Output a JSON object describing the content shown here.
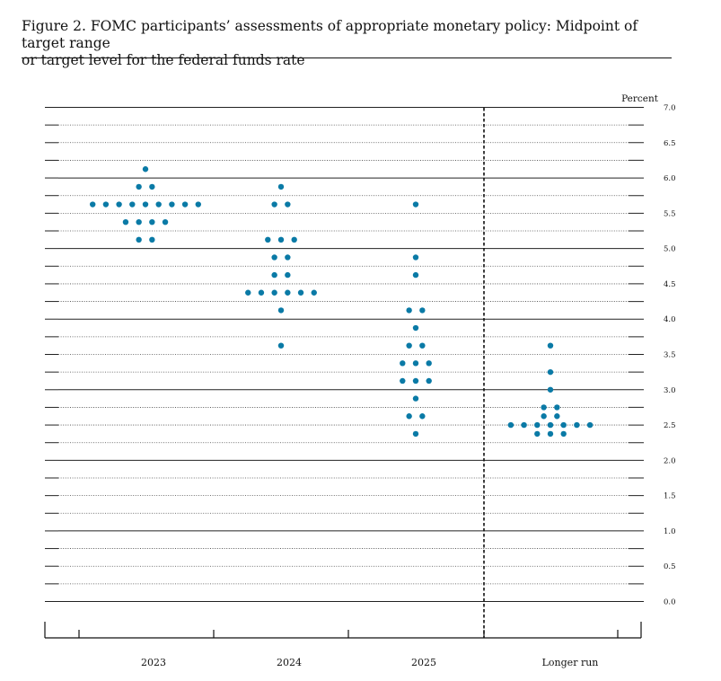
{
  "caption": {
    "line1": "Figure 2.  FOMC participants’ assessments of appropriate monetary policy: Midpoint of target range",
    "line2": "or target level for the federal funds rate"
  },
  "chart_data": {
    "type": "scatter",
    "title": "Figure 2. FOMC participants’ assessments of appropriate monetary policy: Midpoint of target range or target level for the federal funds rate",
    "ylabel": "Percent",
    "xlabel": "",
    "ylim": [
      0,
      7
    ],
    "yticks": [
      "0.0",
      "0.5",
      "1.0",
      "1.5",
      "2.0",
      "2.5",
      "3.0",
      "3.5",
      "4.0",
      "4.5",
      "5.0",
      "5.5",
      "6.0",
      "6.5",
      "7.0"
    ],
    "grid": "dotted at 0.25, solid at whole numbers",
    "legend": "none",
    "marker_color": "#0a7aa6",
    "categories": [
      "2023",
      "2024",
      "2025",
      "Longer run"
    ],
    "dots": [
      {
        "category": "2023",
        "points": [
          {
            "rate": 6.125,
            "count": 1
          },
          {
            "rate": 5.875,
            "count": 2
          },
          {
            "rate": 5.625,
            "count": 9
          },
          {
            "rate": 5.375,
            "count": 4
          },
          {
            "rate": 5.125,
            "count": 2
          }
        ]
      },
      {
        "category": "2024",
        "points": [
          {
            "rate": 5.875,
            "count": 1
          },
          {
            "rate": 5.625,
            "count": 2
          },
          {
            "rate": 5.125,
            "count": 3
          },
          {
            "rate": 4.875,
            "count": 2
          },
          {
            "rate": 4.625,
            "count": 2
          },
          {
            "rate": 4.375,
            "count": 6
          },
          {
            "rate": 4.125,
            "count": 1
          },
          {
            "rate": 3.625,
            "count": 1
          }
        ]
      },
      {
        "category": "2025",
        "points": [
          {
            "rate": 5.625,
            "count": 1
          },
          {
            "rate": 4.875,
            "count": 1
          },
          {
            "rate": 4.625,
            "count": 1
          },
          {
            "rate": 4.125,
            "count": 2
          },
          {
            "rate": 3.875,
            "count": 1
          },
          {
            "rate": 3.625,
            "count": 2
          },
          {
            "rate": 3.375,
            "count": 3
          },
          {
            "rate": 3.125,
            "count": 3
          },
          {
            "rate": 2.875,
            "count": 1
          },
          {
            "rate": 2.625,
            "count": 2
          },
          {
            "rate": 2.375,
            "count": 1
          }
        ]
      },
      {
        "category": "Longer run",
        "points": [
          {
            "rate": 3.625,
            "count": 1
          },
          {
            "rate": 3.25,
            "count": 1
          },
          {
            "rate": 3.0,
            "count": 1
          },
          {
            "rate": 2.75,
            "count": 2
          },
          {
            "rate": 2.625,
            "count": 2
          },
          {
            "rate": 2.5,
            "count": 7
          },
          {
            "rate": 2.375,
            "count": 3
          }
        ]
      }
    ]
  }
}
